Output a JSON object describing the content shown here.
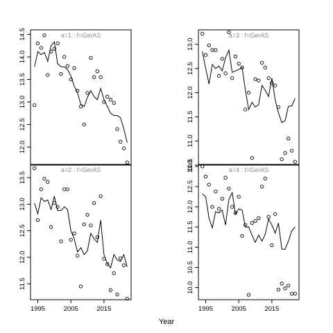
{
  "chart_data": {
    "type": "line",
    "xlabel": "Year",
    "panels": [
      {
        "title": "a=1 : f=GerAS",
        "ylim": [
          11.6,
          14.6
        ],
        "yticks": [
          "12.0",
          "12.5",
          "13.0",
          "13.5",
          "14.0",
          "14.5"
        ],
        "show_xticks": false,
        "fitted": {
          "x": [
            1994,
            1995,
            1996,
            1997,
            1998,
            1999,
            2000,
            2001,
            2002,
            2003,
            2004,
            2005,
            2006,
            2007,
            2008,
            2009,
            2010,
            2011,
            2012,
            2013,
            2014,
            2015,
            2016,
            2017,
            2018,
            2019,
            2020,
            2021,
            2022
          ],
          "y": [
            13.78,
            14.12,
            14.05,
            14.1,
            13.9,
            14.25,
            14.33,
            13.85,
            13.78,
            13.78,
            13.72,
            13.58,
            13.35,
            13.2,
            12.95,
            12.9,
            13.1,
            13.25,
            13.12,
            13.05,
            13.3,
            13.05,
            12.9,
            12.75,
            12.7,
            12.7,
            12.65,
            12.4,
            12.1
          ]
        },
        "observed": {
          "x": [
            1994,
            1995,
            1996,
            1997,
            1998,
            1999,
            2000,
            2001,
            2002,
            2003,
            2004,
            2005,
            2006,
            2007,
            2008,
            2009,
            2010,
            2011,
            2012,
            2013,
            2014,
            2015,
            2016,
            2017,
            2018,
            2019,
            2020,
            2021,
            2022
          ],
          "y": [
            12.93,
            14.3,
            14.2,
            14.48,
            13.6,
            14.12,
            14.18,
            14.3,
            13.62,
            14.0,
            13.8,
            13.5,
            13.75,
            13.25,
            12.9,
            12.5,
            13.2,
            13.98,
            13.55,
            13.68,
            13.55,
            13.0,
            13.12,
            13.05,
            12.98,
            12.4,
            12.12,
            11.97,
            11.66
          ]
        }
      },
      {
        "title": "a=3 : f=GerAS",
        "ylim": [
          10.5,
          13.3
        ],
        "yticks": [
          "10.5",
          "11.0",
          "11.5",
          "12.0",
          "12.5",
          "13.0"
        ],
        "show_xticks": false,
        "fitted": {
          "x": [
            1994,
            1995,
            1996,
            1997,
            1998,
            1999,
            2000,
            2001,
            2002,
            2003,
            2004,
            2005,
            2006,
            2007,
            2008,
            2009,
            2010,
            2011,
            2012,
            2013,
            2014,
            2015,
            2016,
            2017,
            2018,
            2019,
            2020,
            2021,
            2022
          ],
          "y": [
            12.85,
            12.5,
            12.18,
            12.58,
            12.5,
            12.55,
            12.45,
            12.72,
            12.88,
            12.42,
            12.45,
            12.48,
            12.52,
            12.05,
            11.65,
            11.8,
            11.7,
            11.75,
            12.15,
            12.05,
            11.92,
            12.3,
            11.85,
            11.58,
            11.38,
            11.42,
            11.72,
            11.72,
            11.88
          ]
        },
        "observed": {
          "x": [
            1994,
            1995,
            1996,
            1997,
            1998,
            1999,
            2000,
            2001,
            2002,
            2003,
            2004,
            2005,
            2006,
            2007,
            2008,
            2009,
            2010,
            2011,
            2012,
            2013,
            2014,
            2015,
            2016,
            2017,
            2018,
            2019,
            2020,
            2021,
            2022
          ],
          "y": [
            13.22,
            12.78,
            12.98,
            12.88,
            12.88,
            12.35,
            12.7,
            12.4,
            13.25,
            12.3,
            12.75,
            12.6,
            12.52,
            11.65,
            12.0,
            10.65,
            12.28,
            12.25,
            12.62,
            12.52,
            12.3,
            12.2,
            12.15,
            11.7,
            10.62,
            10.75,
            11.05,
            10.8,
            10.57
          ]
        }
      },
      {
        "title": "a=2 : f=GerAS",
        "ylim": [
          11.2,
          13.75
        ],
        "yticks": [
          "11.5",
          "12.0",
          "12.5",
          "13.0",
          "13.5"
        ],
        "show_xticks": true,
        "fitted": {
          "x": [
            1994,
            1995,
            1996,
            1997,
            1998,
            1999,
            2000,
            2001,
            2002,
            2003,
            2004,
            2005,
            2006,
            2007,
            2008,
            2009,
            2010,
            2011,
            2012,
            2013,
            2014,
            2015,
            2016,
            2017,
            2018,
            2019,
            2020,
            2021,
            2022
          ],
          "y": [
            13.02,
            12.82,
            13.12,
            13.05,
            13.08,
            12.9,
            13.15,
            12.88,
            12.88,
            12.95,
            12.9,
            12.5,
            12.35,
            12.1,
            12.18,
            12.05,
            12.12,
            12.45,
            12.35,
            12.28,
            12.7,
            12.05,
            11.88,
            11.8,
            12.05,
            11.95,
            11.92,
            12.05,
            11.82
          ]
        },
        "observed": {
          "x": [
            1994,
            1995,
            1996,
            1997,
            1998,
            1999,
            2000,
            2001,
            2002,
            2003,
            2004,
            2005,
            2006,
            2007,
            2008,
            2009,
            2010,
            2011,
            2012,
            2013,
            2014,
            2015,
            2016,
            2017,
            2018,
            2019,
            2020,
            2021,
            2022
          ],
          "y": [
            13.68,
            12.7,
            13.28,
            13.48,
            13.42,
            12.57,
            13.02,
            12.95,
            12.3,
            13.28,
            13.28,
            12.33,
            12.45,
            12.03,
            11.45,
            12.62,
            12.8,
            12.6,
            13.02,
            12.38,
            13.15,
            11.97,
            11.87,
            11.38,
            11.7,
            11.3,
            11.98,
            11.85,
            11.22
          ]
        }
      },
      {
        "title": "a=4 : f=GerAS",
        "ylim": [
          9.7,
          13.05
        ],
        "yticks": [
          "10.0",
          "10.5",
          "11.0",
          "11.5",
          "12.0",
          "12.5",
          "13.0"
        ],
        "show_xticks": true,
        "fitted": {
          "x": [
            1994,
            1995,
            1996,
            1997,
            1998,
            1999,
            2000,
            2001,
            2002,
            2003,
            2004,
            2005,
            2006,
            2007,
            2008,
            2009,
            2010,
            2011,
            2012,
            2013,
            2014,
            2015,
            2016,
            2017,
            2018,
            2019,
            2020,
            2021,
            2022
          ],
          "y": [
            12.32,
            12.25,
            11.72,
            11.48,
            11.88,
            11.85,
            11.92,
            11.55,
            12.18,
            12.35,
            11.82,
            11.95,
            11.92,
            11.5,
            11.5,
            11.3,
            11.12,
            11.3,
            11.15,
            11.32,
            11.7,
            11.55,
            11.35,
            11.6,
            10.95,
            10.95,
            11.15,
            11.4,
            11.5
          ]
        },
        "observed": {
          "x": [
            1994,
            1995,
            1996,
            1997,
            1998,
            1999,
            2000,
            2001,
            2002,
            2003,
            2004,
            2005,
            2006,
            2007,
            2008,
            2009,
            2010,
            2011,
            2012,
            2013,
            2014,
            2015,
            2016,
            2017,
            2018,
            2019,
            2020,
            2021,
            2022
          ],
          "y": [
            13.0,
            12.75,
            12.55,
            12.0,
            12.38,
            11.95,
            12.2,
            12.72,
            12.45,
            12.0,
            11.85,
            12.25,
            11.28,
            11.55,
            9.82,
            11.6,
            11.65,
            11.72,
            12.5,
            12.7,
            11.75,
            11.05,
            11.82,
            9.95,
            10.1,
            9.98,
            10.05,
            9.85,
            9.85
          ]
        }
      }
    ],
    "xticks": [
      1995,
      2005,
      2015
    ],
    "xlim": [
      1992.8,
      2023.2
    ]
  }
}
